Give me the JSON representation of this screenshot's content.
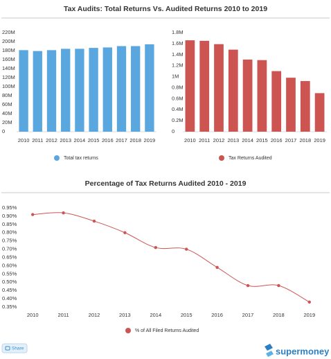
{
  "title": "Tax Audits: Total Returns Vs. Audited Returns 2010 to 2019",
  "chart_data": [
    {
      "type": "bar",
      "categories": [
        "2010",
        "2011",
        "2012",
        "2013",
        "2014",
        "2015",
        "2016",
        "2017",
        "2018",
        "2019"
      ],
      "series": [
        {
          "name": "Total tax returns",
          "color": "#5aa7df",
          "values": [
            181000000,
            179000000,
            181000000,
            184000000,
            184000000,
            186000000,
            187000000,
            190000000,
            190000000,
            194000000
          ]
        }
      ],
      "ylim": [
        0,
        220000000
      ],
      "yticks": [
        0,
        {
          "value": 20000000,
          "label": "20M"
        },
        {
          "value": 40000000,
          "label": "40M"
        },
        {
          "value": 60000000,
          "label": "60M"
        },
        {
          "value": 80000000,
          "label": "80M"
        },
        {
          "value": 100000000,
          "label": "100M"
        },
        {
          "value": 120000000,
          "label": "120M"
        },
        {
          "value": 140000000,
          "label": "140M"
        },
        {
          "value": 160000000,
          "label": "160M"
        },
        {
          "value": 180000000,
          "label": "180M"
        },
        {
          "value": 200000000,
          "label": "200M"
        },
        {
          "value": 220000000,
          "label": "220M"
        }
      ],
      "grid": false
    },
    {
      "type": "bar",
      "categories": [
        "2010",
        "2011",
        "2012",
        "2013",
        "2014",
        "2015",
        "2016",
        "2017",
        "2018",
        "2019"
      ],
      "series": [
        {
          "name": "Tax Returns Audited",
          "color": "#cc5552",
          "values": [
            1660000,
            1650000,
            1590000,
            1490000,
            1310000,
            1300000,
            1100000,
            980000,
            920000,
            700000
          ]
        }
      ],
      "ylim": [
        0,
        1800000
      ],
      "yticks": [
        0,
        {
          "value": 200000,
          "label": "0.2M"
        },
        {
          "value": 400000,
          "label": "0.4M"
        },
        {
          "value": 600000,
          "label": "0.6M"
        },
        {
          "value": 800000,
          "label": "0.8M"
        },
        {
          "value": 1000000,
          "label": "1M"
        },
        {
          "value": 1200000,
          "label": "1.2M"
        },
        {
          "value": 1400000,
          "label": "1.4M"
        },
        {
          "value": 1600000,
          "label": "1.6M"
        },
        {
          "value": 1800000,
          "label": "1.8M"
        }
      ],
      "grid": false
    },
    {
      "type": "line",
      "title": "Percentage of Tax Returns Audited 2010 - 2019",
      "categories": [
        "2010",
        "2011",
        "2012",
        "2013",
        "2014",
        "2015",
        "2016",
        "2017",
        "2018",
        "2019"
      ],
      "series": [
        {
          "name": "% of All Filed Returns Audited",
          "color": "#cc5552",
          "values": [
            0.91,
            0.92,
            0.87,
            0.8,
            0.71,
            0.7,
            0.59,
            0.48,
            0.48,
            0.38
          ]
        }
      ],
      "ylim": [
        0.35,
        0.95
      ],
      "yticks": [
        {
          "value": 0.35,
          "label": "0.35%"
        },
        {
          "value": 0.4,
          "label": "0.40%"
        },
        {
          "value": 0.45,
          "label": "0.45%"
        },
        {
          "value": 0.5,
          "label": "0.50%"
        },
        {
          "value": 0.55,
          "label": "0.55%"
        },
        {
          "value": 0.6,
          "label": "0.60%"
        },
        {
          "value": 0.65,
          "label": "0.65%"
        },
        {
          "value": 0.7,
          "label": "0.70%"
        },
        {
          "value": 0.75,
          "label": "0.75%"
        },
        {
          "value": 0.8,
          "label": "0.80%"
        },
        {
          "value": 0.85,
          "label": "0.85%"
        },
        {
          "value": 0.9,
          "label": "0.90%"
        },
        {
          "value": 0.95,
          "label": "0.95%"
        }
      ],
      "grid": false
    }
  ],
  "footer": {
    "share": "Share",
    "brand": "supermoney"
  }
}
